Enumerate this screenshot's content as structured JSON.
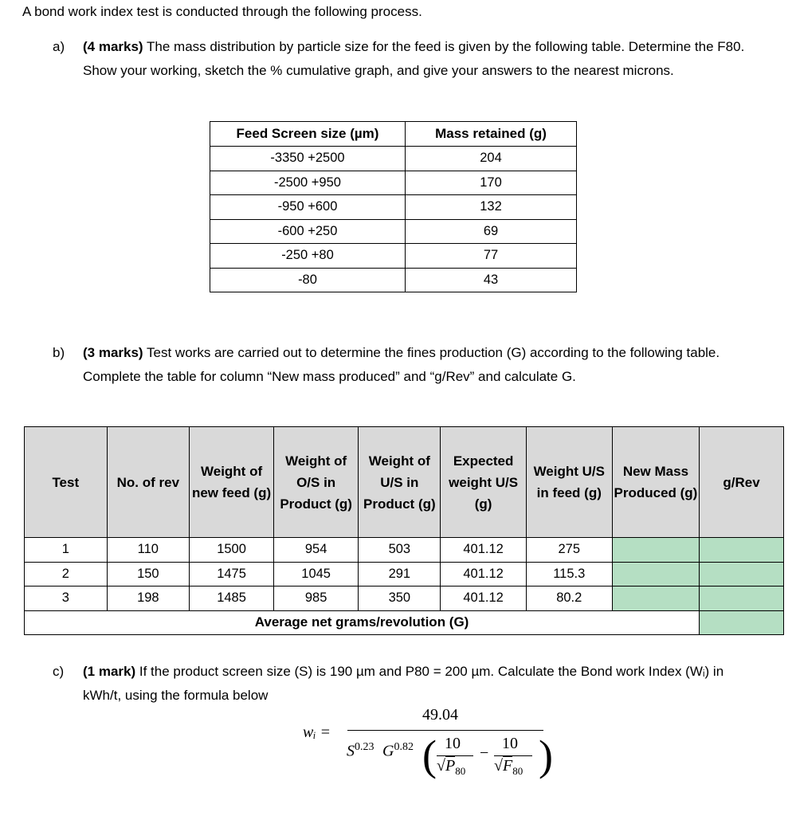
{
  "intro": "A bond work index test is conducted through the following process.",
  "part_a": {
    "label": "a)",
    "marks": "(4 marks)",
    "text": " The mass distribution by particle size for the feed is given by the following table. Determine the F80. Show your working, sketch the % cumulative graph, and give your answers to the nearest microns.",
    "table": {
      "headers": [
        "Feed Screen size (µm)",
        "Mass retained (g)"
      ],
      "rows": [
        [
          "-3350 +2500",
          "204"
        ],
        [
          "-2500 +950",
          "170"
        ],
        [
          "-950 +600",
          "132"
        ],
        [
          "-600 +250",
          "69"
        ],
        [
          "-250 +80",
          "77"
        ],
        [
          "-80",
          "43"
        ]
      ]
    }
  },
  "part_b": {
    "label": "b)",
    "marks": "(3 marks)",
    "text": " Test works are carried out to determine the fines production (G) according to the following table. Complete the table for column “New mass produced” and “g/Rev” and calculate G.",
    "table": {
      "headers": [
        "Test",
        "No. of rev",
        "Weight of new feed (g)",
        "Weight of O/S in Product (g)",
        "Weight of U/S in Product (g)",
        "Expected weight U/S (g)",
        "Weight U/S in feed (g)",
        "New Mass Produced (g)",
        "g/Rev"
      ],
      "rows": [
        [
          "1",
          "110",
          "1500",
          "954",
          "503",
          "401.12",
          "275",
          "",
          ""
        ],
        [
          "2",
          "150",
          "1475",
          "1045",
          "291",
          "401.12",
          "115.3",
          "",
          ""
        ],
        [
          "3",
          "198",
          "1485",
          "985",
          "350",
          "401.12",
          "80.2",
          "",
          ""
        ]
      ],
      "footer": "Average net grams/revolution (G)",
      "answer_cell_color": "#b5dfc3",
      "header_color": "#d9d9d9"
    }
  },
  "part_c": {
    "label": "c)",
    "marks": "(1 mark)",
    "text": " If the product screen size (S) is 190 µm and P80 = 200 µm. Calculate the Bond work Index (Wᵢ) in kWh/t, using the formula below",
    "formula": {
      "lhs": "wᵢ =",
      "numerator": "49.04",
      "s": "S",
      "s_exp": "0.23",
      "g": "G",
      "g_exp": "0.82",
      "ten1": "10",
      "p": "P",
      "p_sub": "80",
      "ten2": "10",
      "f": "F",
      "f_sub": "80",
      "minus": "−"
    }
  }
}
